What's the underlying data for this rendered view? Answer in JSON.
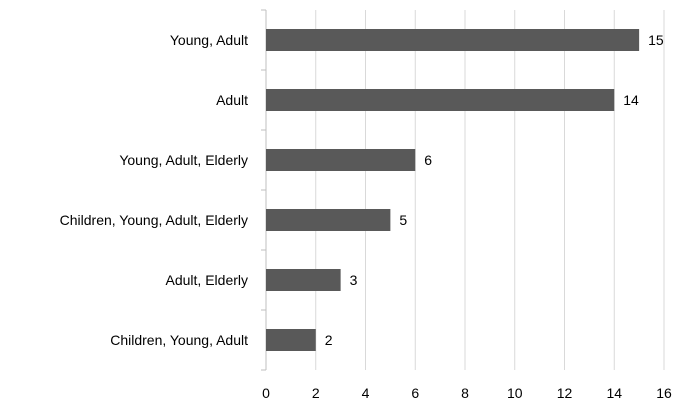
{
  "chart_data": {
    "type": "bar",
    "orientation": "horizontal",
    "categories": [
      "Young, Adult",
      "Adult",
      "Young, Adult, Elderly",
      "Children, Young, Adult, Elderly",
      "Adult, Elderly",
      "Children, Young, Adult"
    ],
    "values": [
      15,
      14,
      6,
      5,
      3,
      2
    ],
    "xlim": [
      0,
      16
    ],
    "xticks": [
      0,
      2,
      4,
      6,
      8,
      10,
      12,
      14,
      16
    ],
    "grid": true,
    "data_labels": true,
    "bar_color": "#595959",
    "grid_color": "#d9d9d9",
    "axis_color": "#bfbfbf"
  }
}
